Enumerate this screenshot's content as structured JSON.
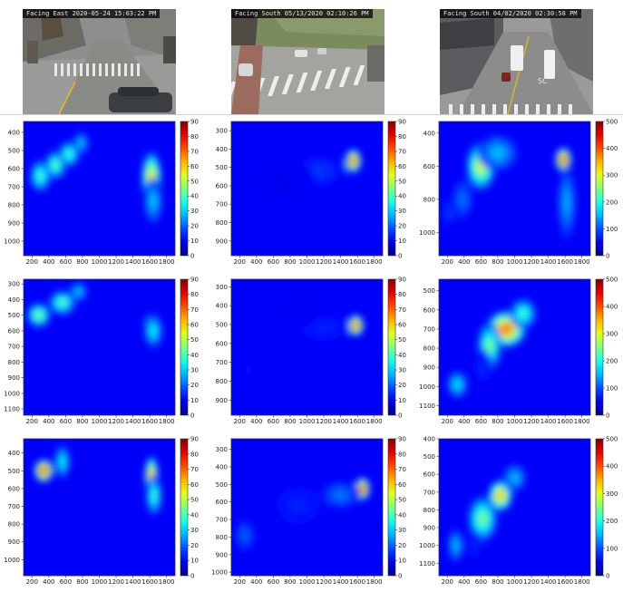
{
  "cameras": [
    {
      "stamp": "Facing East 2020-05-24 15:03:22 PM",
      "street_text": ""
    },
    {
      "stamp": "Facing South 05/13/2020 02:10:26 PM",
      "street_text": ""
    },
    {
      "stamp": "Facing South 04/02/2020 02:30:58 PM",
      "street_text": "SC"
    }
  ],
  "colormap": "jet",
  "chart_data": [
    {
      "type": "heatmap",
      "row": 1,
      "col": 1,
      "xticks": [
        200,
        400,
        600,
        800,
        1000,
        1200,
        1400,
        1600,
        1800
      ],
      "yticks": [
        400,
        500,
        600,
        700,
        800,
        900,
        1000
      ],
      "xlim": [
        100,
        1900
      ],
      "ylim": [
        1080,
        340
      ],
      "cbar_ticks": [
        0,
        10,
        20,
        30,
        40,
        50,
        60,
        70,
        80,
        90
      ],
      "cbar_max": 90,
      "blobs": [
        {
          "x": 300,
          "y": 640,
          "sx": 80,
          "sy": 55,
          "v": 40
        },
        {
          "x": 480,
          "y": 580,
          "sx": 80,
          "sy": 50,
          "v": 42
        },
        {
          "x": 640,
          "y": 520,
          "sx": 80,
          "sy": 45,
          "v": 40
        },
        {
          "x": 780,
          "y": 460,
          "sx": 60,
          "sy": 40,
          "v": 30
        },
        {
          "x": 1620,
          "y": 650,
          "sx": 75,
          "sy": 90,
          "v": 60
        },
        {
          "x": 1640,
          "y": 780,
          "sx": 70,
          "sy": 80,
          "v": 30
        }
      ]
    },
    {
      "type": "heatmap",
      "row": 1,
      "col": 2,
      "xticks": [
        200,
        400,
        600,
        800,
        1000,
        1200,
        1400,
        1600,
        1800
      ],
      "yticks": [
        300,
        400,
        500,
        600,
        700,
        800,
        900
      ],
      "xlim": [
        100,
        1900
      ],
      "ylim": [
        980,
        250
      ],
      "cbar_ticks": [
        0,
        10,
        20,
        30,
        40,
        50,
        60,
        70,
        80,
        90
      ],
      "cbar_max": 90,
      "blobs": [
        {
          "x": 1550,
          "y": 465,
          "sx": 60,
          "sy": 40,
          "v": 80
        },
        {
          "x": 1150,
          "y": 520,
          "sx": 200,
          "sy": 60,
          "v": 16
        },
        {
          "x": 700,
          "y": 580,
          "sx": 250,
          "sy": 80,
          "v": 10
        }
      ]
    },
    {
      "type": "heatmap",
      "row": 1,
      "col": 3,
      "xticks": [
        200,
        400,
        600,
        800,
        1000,
        1200,
        1400,
        1600,
        1800
      ],
      "yticks": [
        400,
        600,
        800,
        1000
      ],
      "xlim": [
        100,
        1900
      ],
      "ylim": [
        1140,
        330
      ],
      "cbar_ticks": [
        0,
        100,
        200,
        300,
        400,
        500
      ],
      "cbar_max": 500,
      "blobs": [
        {
          "x": 600,
          "y": 600,
          "sx": 110,
          "sy": 90,
          "v": 300
        },
        {
          "x": 800,
          "y": 520,
          "sx": 150,
          "sy": 70,
          "v": 160
        },
        {
          "x": 380,
          "y": 800,
          "sx": 80,
          "sy": 80,
          "v": 120
        },
        {
          "x": 1580,
          "y": 560,
          "sx": 60,
          "sy": 45,
          "v": 470
        },
        {
          "x": 1620,
          "y": 820,
          "sx": 70,
          "sy": 140,
          "v": 150
        },
        {
          "x": 220,
          "y": 880,
          "sx": 60,
          "sy": 60,
          "v": 90
        }
      ]
    },
    {
      "type": "heatmap",
      "row": 2,
      "col": 1,
      "xticks": [
        200,
        400,
        600,
        800,
        1000,
        1200,
        1400,
        1600,
        1800
      ],
      "yticks": [
        300,
        400,
        500,
        600,
        700,
        800,
        900,
        1000,
        1100
      ],
      "xlim": [
        100,
        1900
      ],
      "ylim": [
        1140,
        270
      ],
      "cbar_ticks": [
        0,
        10,
        20,
        30,
        40,
        50,
        60,
        70,
        80,
        90
      ],
      "cbar_max": 90,
      "blobs": [
        {
          "x": 280,
          "y": 500,
          "sx": 90,
          "sy": 50,
          "v": 45
        },
        {
          "x": 560,
          "y": 420,
          "sx": 100,
          "sy": 50,
          "v": 42
        },
        {
          "x": 750,
          "y": 350,
          "sx": 70,
          "sy": 40,
          "v": 30
        },
        {
          "x": 1640,
          "y": 600,
          "sx": 70,
          "sy": 70,
          "v": 35
        },
        {
          "x": 1500,
          "y": 480,
          "sx": 50,
          "sy": 50,
          "v": 10
        }
      ]
    },
    {
      "type": "heatmap",
      "row": 2,
      "col": 2,
      "xticks": [
        200,
        400,
        600,
        800,
        1000,
        1200,
        1400,
        1600,
        1800
      ],
      "yticks": [
        300,
        400,
        500,
        600,
        700,
        800,
        900
      ],
      "xlim": [
        100,
        1900
      ],
      "ylim": [
        980,
        260
      ],
      "cbar_ticks": [
        0,
        10,
        20,
        30,
        40,
        50,
        60,
        70,
        80,
        90
      ],
      "cbar_max": 90,
      "blobs": [
        {
          "x": 1580,
          "y": 505,
          "sx": 60,
          "sy": 35,
          "v": 80
        },
        {
          "x": 1200,
          "y": 520,
          "sx": 200,
          "sy": 50,
          "v": 14
        },
        {
          "x": 900,
          "y": 420,
          "sx": 150,
          "sy": 60,
          "v": 10
        },
        {
          "x": 300,
          "y": 740,
          "sx": 100,
          "sy": 80,
          "v": 12
        }
      ]
    },
    {
      "type": "heatmap",
      "row": 2,
      "col": 3,
      "xticks": [
        200,
        400,
        600,
        800,
        1000,
        1200,
        1400,
        1600,
        1800
      ],
      "yticks": [
        500,
        600,
        700,
        800,
        900,
        1000,
        1100
      ],
      "xlim": [
        100,
        1900
      ],
      "ylim": [
        1150,
        440
      ],
      "cbar_ticks": [
        0,
        100,
        200,
        300,
        400,
        500
      ],
      "cbar_max": 500,
      "blobs": [
        {
          "x": 900,
          "y": 700,
          "sx": 150,
          "sy": 60,
          "v": 400
        },
        {
          "x": 700,
          "y": 790,
          "sx": 90,
          "sy": 80,
          "v": 250
        },
        {
          "x": 1100,
          "y": 620,
          "sx": 100,
          "sy": 50,
          "v": 220
        },
        {
          "x": 320,
          "y": 990,
          "sx": 80,
          "sy": 45,
          "v": 180
        },
        {
          "x": 620,
          "y": 900,
          "sx": 70,
          "sy": 60,
          "v": 80
        }
      ]
    },
    {
      "type": "heatmap",
      "row": 3,
      "col": 1,
      "xticks": [
        200,
        400,
        600,
        800,
        1000,
        1200,
        1400,
        1600,
        1800
      ],
      "yticks": [
        400,
        500,
        600,
        700,
        800,
        900,
        1000
      ],
      "xlim": [
        100,
        1900
      ],
      "ylim": [
        1090,
        320
      ],
      "cbar_ticks": [
        0,
        10,
        20,
        30,
        40,
        50,
        60,
        70,
        80,
        90
      ],
      "cbar_max": 90,
      "blobs": [
        {
          "x": 340,
          "y": 500,
          "sx": 70,
          "sy": 40,
          "v": 85
        },
        {
          "x": 560,
          "y": 450,
          "sx": 60,
          "sy": 60,
          "v": 35
        },
        {
          "x": 1620,
          "y": 530,
          "sx": 50,
          "sy": 70,
          "v": 70
        },
        {
          "x": 1650,
          "y": 640,
          "sx": 60,
          "sy": 70,
          "v": 40
        }
      ]
    },
    {
      "type": "heatmap",
      "row": 3,
      "col": 2,
      "xticks": [
        200,
        400,
        600,
        800,
        1000,
        1200,
        1400,
        1600,
        1800
      ],
      "yticks": [
        300,
        400,
        500,
        600,
        700,
        800,
        900,
        1000
      ],
      "xlim": [
        100,
        1900
      ],
      "ylim": [
        1020,
        240
      ],
      "cbar_ticks": [
        0,
        10,
        20,
        30,
        40,
        50,
        60,
        70,
        80,
        90
      ],
      "cbar_max": 90,
      "blobs": [
        {
          "x": 1660,
          "y": 525,
          "sx": 55,
          "sy": 40,
          "v": 85
        },
        {
          "x": 1400,
          "y": 560,
          "sx": 150,
          "sy": 50,
          "v": 22
        },
        {
          "x": 900,
          "y": 620,
          "sx": 200,
          "sy": 80,
          "v": 14
        },
        {
          "x": 260,
          "y": 790,
          "sx": 80,
          "sy": 60,
          "v": 20
        }
      ]
    },
    {
      "type": "heatmap",
      "row": 3,
      "col": 3,
      "xticks": [
        200,
        400,
        600,
        800,
        1000,
        1200,
        1400,
        1600,
        1800
      ],
      "yticks": [
        400,
        500,
        600,
        700,
        800,
        900,
        1000,
        1100
      ],
      "xlim": [
        100,
        1900
      ],
      "ylim": [
        1170,
        400
      ],
      "cbar_ticks": [
        0,
        100,
        200,
        300,
        400,
        500
      ],
      "cbar_max": 500,
      "blobs": [
        {
          "x": 830,
          "y": 720,
          "sx": 90,
          "sy": 55,
          "v": 360
        },
        {
          "x": 620,
          "y": 850,
          "sx": 110,
          "sy": 80,
          "v": 250
        },
        {
          "x": 1000,
          "y": 620,
          "sx": 90,
          "sy": 50,
          "v": 160
        },
        {
          "x": 300,
          "y": 1000,
          "sx": 60,
          "sy": 60,
          "v": 160
        },
        {
          "x": 1580,
          "y": 740,
          "sx": 40,
          "sy": 80,
          "v": 60
        },
        {
          "x": 520,
          "y": 1000,
          "sx": 60,
          "sy": 50,
          "v": 80
        }
      ]
    }
  ]
}
